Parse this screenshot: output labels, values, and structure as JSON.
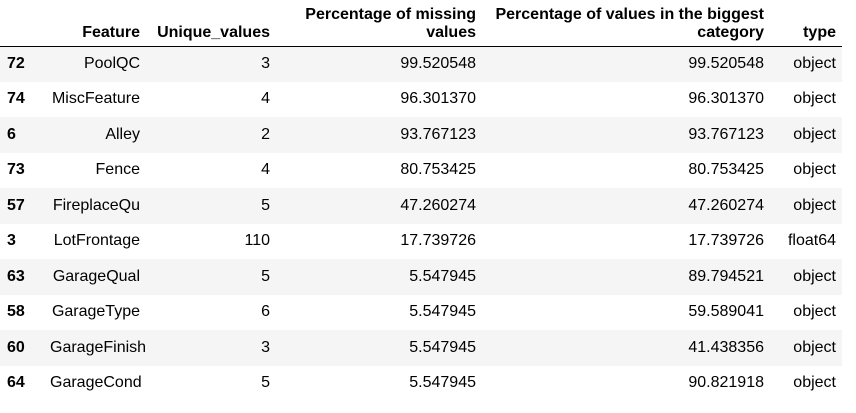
{
  "table": {
    "columns": [
      "",
      "Feature",
      "Unique_values",
      "Percentage of missing values",
      "Percentage of values in the biggest category",
      "type"
    ],
    "rows": [
      {
        "index": "72",
        "feature": "PoolQC",
        "unique": "3",
        "missing": "99.520548",
        "biggest": "99.520548",
        "type": "object"
      },
      {
        "index": "74",
        "feature": "MiscFeature",
        "unique": "4",
        "missing": "96.301370",
        "biggest": "96.301370",
        "type": "object"
      },
      {
        "index": "6",
        "feature": "Alley",
        "unique": "2",
        "missing": "93.767123",
        "biggest": "93.767123",
        "type": "object"
      },
      {
        "index": "73",
        "feature": "Fence",
        "unique": "4",
        "missing": "80.753425",
        "biggest": "80.753425",
        "type": "object"
      },
      {
        "index": "57",
        "feature": "FireplaceQu",
        "unique": "5",
        "missing": "47.260274",
        "biggest": "47.260274",
        "type": "object"
      },
      {
        "index": "3",
        "feature": "LotFrontage",
        "unique": "110",
        "missing": "17.739726",
        "biggest": "17.739726",
        "type": "float64"
      },
      {
        "index": "63",
        "feature": "GarageQual",
        "unique": "5",
        "missing": "5.547945",
        "biggest": "89.794521",
        "type": "object"
      },
      {
        "index": "58",
        "feature": "GarageType",
        "unique": "6",
        "missing": "5.547945",
        "biggest": "59.589041",
        "type": "object"
      },
      {
        "index": "60",
        "feature": "GarageFinish",
        "unique": "3",
        "missing": "5.547945",
        "biggest": "41.438356",
        "type": "object"
      },
      {
        "index": "64",
        "feature": "GarageCond",
        "unique": "5",
        "missing": "5.547945",
        "biggest": "90.821918",
        "type": "object"
      }
    ]
  }
}
